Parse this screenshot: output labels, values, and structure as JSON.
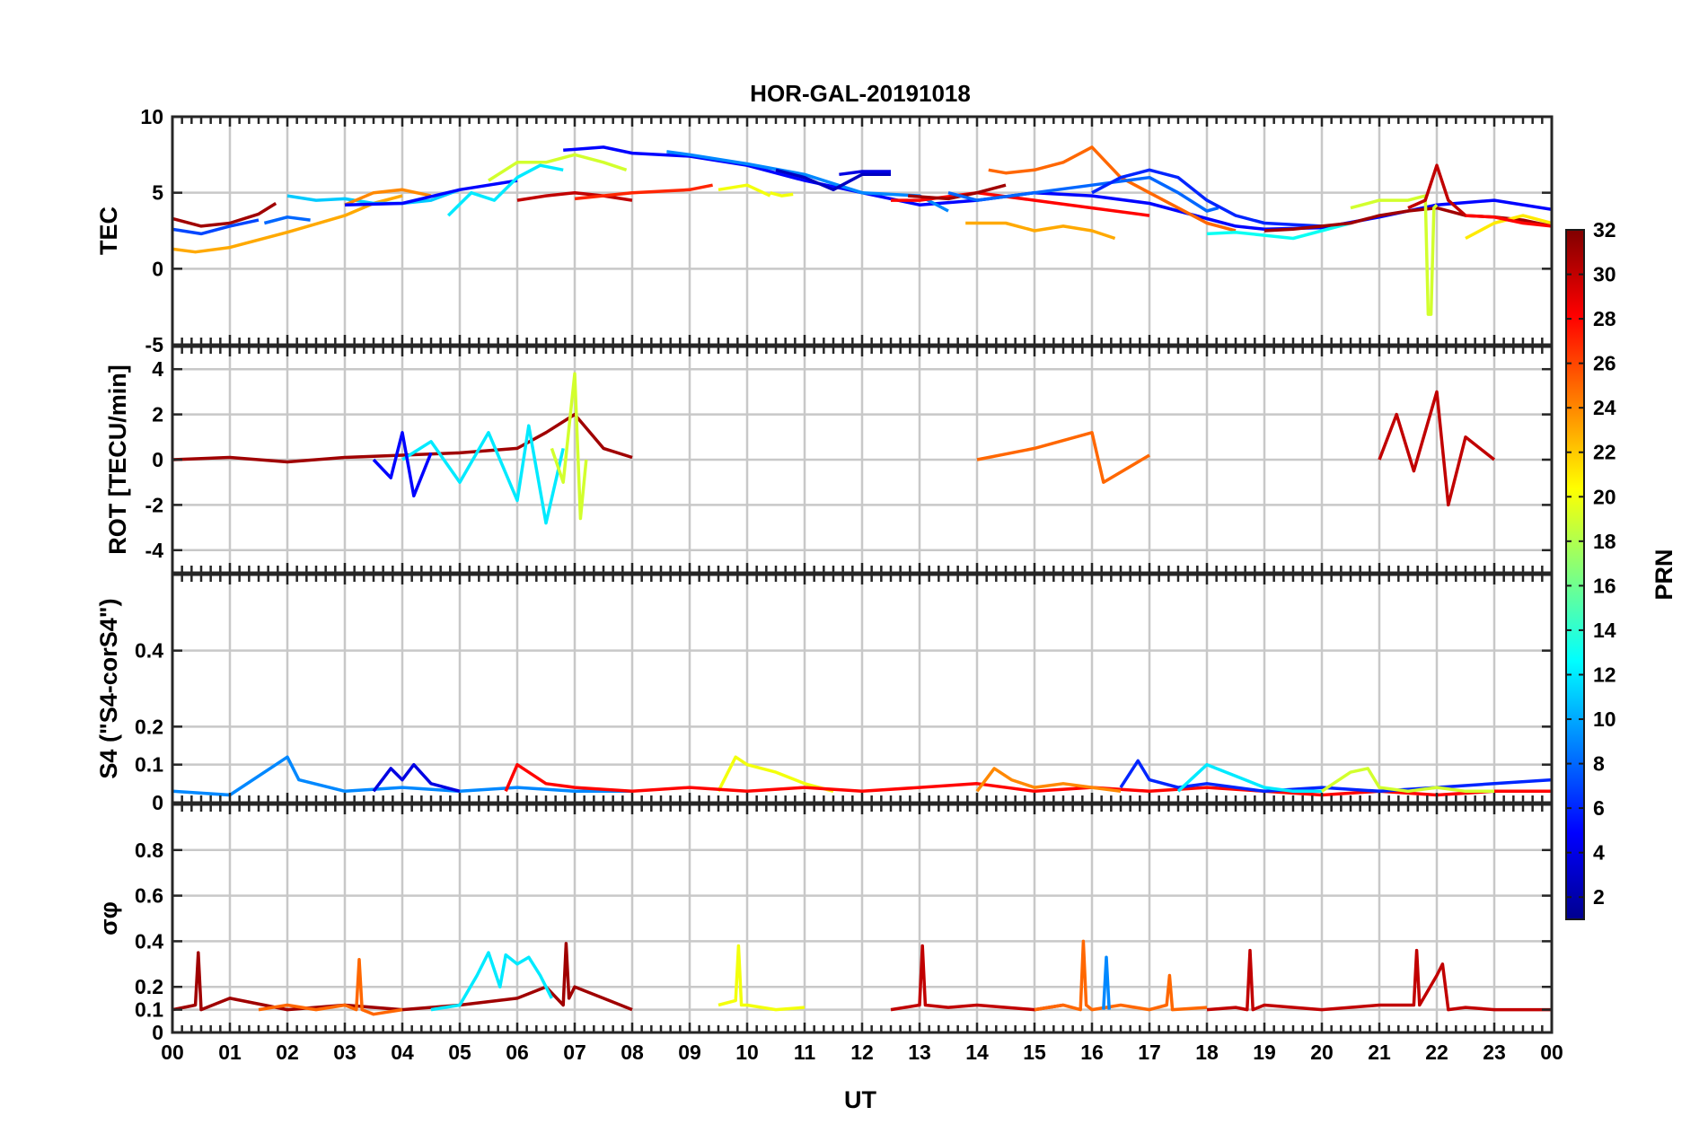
{
  "figure": {
    "title": "HOR-GAL-20191018",
    "xlabel": "UT",
    "colorbar_label": "PRN",
    "colorbar_ticks": [
      "2",
      "4",
      "6",
      "8",
      "10",
      "12",
      "14",
      "16",
      "18",
      "20",
      "22",
      "24",
      "26",
      "28",
      "30",
      "32"
    ]
  },
  "chart_data": [
    {
      "type": "line",
      "panel": "tec",
      "ylabel": "TEC",
      "xlim": [
        0,
        24
      ],
      "ylim": [
        -5,
        10
      ],
      "yticks": [
        "-5",
        "0",
        "5",
        "10"
      ],
      "xticks": [],
      "series": [
        {
          "prn": 31,
          "x": [
            0,
            0.5,
            1,
            1.5,
            1.8
          ],
          "y": [
            3.3,
            2.8,
            3,
            3.6,
            4.3
          ]
        },
        {
          "prn": 7,
          "x": [
            0,
            0.5,
            1,
            1.5
          ],
          "y": [
            2.6,
            2.3,
            2.8,
            3.2
          ]
        },
        {
          "prn": 23,
          "x": [
            0,
            0.4,
            1,
            2,
            3,
            3.5,
            4
          ],
          "y": [
            1.3,
            1.1,
            1.4,
            2.4,
            3.5,
            4.3,
            4.8
          ]
        },
        {
          "prn": 11,
          "x": [
            2,
            2.5,
            3,
            3.5,
            4,
            4.5,
            5
          ],
          "y": [
            4.8,
            4.5,
            4.6,
            4.3,
            4.3,
            4.5,
            5.2
          ]
        },
        {
          "prn": 8,
          "x": [
            1.6,
            2,
            2.4
          ],
          "y": [
            3,
            3.4,
            3.2
          ]
        },
        {
          "prn": 24,
          "x": [
            3,
            3.5,
            4,
            4.5
          ],
          "y": [
            4.2,
            5,
            5.2,
            4.8
          ]
        },
        {
          "prn": 5,
          "x": [
            3,
            4,
            5,
            5.5,
            6
          ],
          "y": [
            4.2,
            4.3,
            5.2,
            5.5,
            5.8
          ]
        },
        {
          "prn": 12,
          "x": [
            4.8,
            5.2,
            5.6,
            6,
            6.4,
            6.8
          ],
          "y": [
            3.5,
            5,
            4.5,
            6,
            6.8,
            6.5
          ]
        },
        {
          "prn": 19,
          "x": [
            5.5,
            6,
            6.5,
            7,
            7.5,
            7.9
          ],
          "y": [
            5.8,
            7,
            7,
            7.5,
            7,
            6.5
          ]
        },
        {
          "prn": 30,
          "x": [
            6,
            6.5,
            7,
            7.5,
            8
          ],
          "y": [
            4.5,
            4.8,
            5,
            4.8,
            4.5
          ]
        },
        {
          "prn": 27,
          "x": [
            7,
            8,
            9,
            9.4
          ],
          "y": [
            4.6,
            5,
            5.2,
            5.5
          ]
        },
        {
          "prn": 5,
          "x": [
            6.8,
            7.5,
            8,
            9,
            10,
            11,
            12,
            13,
            14,
            15,
            16,
            17,
            18,
            18.5,
            19,
            20,
            21,
            22,
            23,
            24
          ],
          "y": [
            7.8,
            8,
            7.6,
            7.4,
            6.8,
            5.8,
            5,
            4.2,
            4.5,
            5,
            4.8,
            4.3,
            3.3,
            2.8,
            2.6,
            2.7,
            3.4,
            4.2,
            4.5,
            3.9
          ]
        },
        {
          "prn": 9,
          "x": [
            8.6,
            9,
            10,
            11,
            12,
            13,
            13.5
          ],
          "y": [
            7.7,
            7.5,
            6.9,
            6.2,
            5,
            4.8,
            3.8
          ]
        },
        {
          "prn": 20,
          "x": [
            9.5,
            10,
            10.4
          ],
          "y": [
            5.2,
            5.5,
            4.8
          ]
        },
        {
          "prn": 20,
          "x": [
            10.4,
            10.6,
            10.8
          ],
          "y": [
            5,
            4.8,
            4.9
          ]
        },
        {
          "prn": 3,
          "x": [
            10.5,
            11,
            11.5,
            12,
            12.5
          ],
          "y": [
            6.5,
            6,
            5.2,
            6.2,
            6.2
          ]
        },
        {
          "prn": 4,
          "x": [
            11.6,
            12,
            12.5
          ],
          "y": [
            6.2,
            6.4,
            6.4
          ]
        },
        {
          "prn": 28,
          "x": [
            12.5,
            13,
            14,
            15,
            16,
            17
          ],
          "y": [
            4.5,
            4.5,
            5,
            4.5,
            4,
            3.5
          ]
        },
        {
          "prn": 31,
          "x": [
            12.8,
            13.5,
            14,
            14.5
          ],
          "y": [
            4.8,
            4.6,
            5,
            5.5
          ]
        },
        {
          "prn": 23,
          "x": [
            13.8,
            14.5,
            15,
            15.5,
            16,
            16.4
          ],
          "y": [
            3,
            3,
            2.5,
            2.8,
            2.5,
            2
          ]
        },
        {
          "prn": 25,
          "x": [
            14.2,
            14.5,
            15,
            15.5,
            16,
            16.5,
            17,
            17.5,
            18,
            18.5
          ],
          "y": [
            6.5,
            6.3,
            6.5,
            7,
            8,
            6,
            5,
            4,
            3,
            2.5
          ]
        },
        {
          "prn": 8,
          "x": [
            13.5,
            14,
            15,
            16,
            17,
            17.5,
            18,
            18.2
          ],
          "y": [
            5,
            4.5,
            5,
            5.5,
            6,
            5,
            3.8,
            4
          ]
        },
        {
          "prn": 6,
          "x": [
            16,
            16.5,
            17,
            17.5,
            18,
            18.5,
            19,
            19.5,
            20
          ],
          "y": [
            5,
            6,
            6.5,
            6,
            4.5,
            3.5,
            3,
            2.9,
            2.8
          ]
        },
        {
          "prn": 13,
          "x": [
            18,
            18.5,
            19,
            19.5,
            20,
            20.5
          ],
          "y": [
            2.3,
            2.4,
            2.2,
            2,
            2.5,
            3
          ]
        },
        {
          "prn": 31,
          "x": [
            19,
            19.5,
            20,
            20.5,
            21,
            21.5,
            22,
            22.5,
            23,
            23.5,
            24
          ],
          "y": [
            2.5,
            2.6,
            2.8,
            3,
            3.5,
            3.8,
            4,
            3.5,
            3.4,
            3.2,
            2.8
          ]
        },
        {
          "prn": 19,
          "x": [
            20.5,
            21,
            21.5,
            21.8,
            21.85,
            21.9,
            21.95,
            22
          ],
          "y": [
            4,
            4.5,
            4.5,
            4.8,
            -3,
            -3,
            4,
            4.2
          ]
        },
        {
          "prn": 21,
          "x": [
            22.5,
            23,
            23.5,
            24
          ],
          "y": [
            2,
            3,
            3.5,
            3
          ]
        },
        {
          "prn": 30,
          "x": [
            21.5,
            21.8,
            22,
            22.2,
            22.5
          ],
          "y": [
            4,
            4.5,
            6.8,
            4.5,
            3.5
          ]
        },
        {
          "prn": 28,
          "x": [
            22.5,
            23,
            23.5,
            24
          ],
          "y": [
            3.5,
            3.4,
            3,
            2.8
          ]
        }
      ]
    },
    {
      "type": "line",
      "panel": "rot",
      "ylabel": "ROT [TECU/min]",
      "xlim": [
        0,
        24
      ],
      "ylim": [
        -5,
        5
      ],
      "yticks": [
        "-4",
        "-2",
        "0",
        "2",
        "4"
      ],
      "xticks": [],
      "series": [
        {
          "prn": 31,
          "x": [
            0,
            1,
            2,
            3,
            4,
            5,
            6,
            6.5,
            7,
            7.5,
            8
          ],
          "y": [
            0,
            0.1,
            -0.1,
            0.1,
            0.2,
            0.3,
            0.5,
            1.2,
            2,
            0.5,
            0.1
          ]
        },
        {
          "prn": 12,
          "x": [
            4,
            4.5,
            5,
            5.5,
            6,
            6.2,
            6.5,
            6.8
          ],
          "y": [
            0,
            0.8,
            -1,
            1.2,
            -1.8,
            1.5,
            -2.8,
            0.5
          ]
        },
        {
          "prn": 19,
          "x": [
            6.6,
            6.8,
            7,
            7.1,
            7.2
          ],
          "y": [
            0.5,
            -1,
            3.8,
            -2.6,
            0
          ]
        },
        {
          "prn": 5,
          "x": [
            3.5,
            3.8,
            4,
            4.2,
            4.5
          ],
          "y": [
            0,
            -0.8,
            1.2,
            -1.6,
            0.3
          ]
        },
        {
          "prn": 30,
          "x": [
            21,
            21.3,
            21.6,
            22,
            22.2,
            22.5,
            23
          ],
          "y": [
            0,
            2,
            -0.5,
            3,
            -2,
            1,
            0
          ]
        },
        {
          "prn": 25,
          "x": [
            14,
            15,
            16,
            16.2,
            17
          ],
          "y": [
            0,
            0.5,
            1.2,
            -1,
            0.2
          ]
        }
      ]
    },
    {
      "type": "line",
      "panel": "s4",
      "ylabel": "S4 (\"S4-corS4\")",
      "xlim": [
        0,
        24
      ],
      "ylim": [
        0,
        0.6
      ],
      "yticks": [
        "0",
        "0.1",
        "0.2",
        "0.4"
      ],
      "xticks": [],
      "series": [
        {
          "prn": 9,
          "x": [
            0,
            1,
            1.8,
            2,
            2.2,
            3,
            4,
            5,
            6,
            7,
            8
          ],
          "y": [
            0.03,
            0.02,
            0.1,
            0.12,
            0.06,
            0.03,
            0.04,
            0.03,
            0.04,
            0.03,
            0.03
          ]
        },
        {
          "prn": 4,
          "x": [
            3.5,
            3.8,
            4,
            4.2,
            4.5,
            5
          ],
          "y": [
            0.03,
            0.09,
            0.06,
            0.1,
            0.05,
            0.03
          ]
        },
        {
          "prn": 20,
          "x": [
            9.5,
            9.8,
            10,
            10.5,
            11,
            11.5
          ],
          "y": [
            0.03,
            0.12,
            0.1,
            0.08,
            0.05,
            0.03
          ]
        },
        {
          "prn": 28,
          "x": [
            5.8,
            6,
            6.5,
            7,
            8,
            9,
            10,
            11,
            12,
            13,
            14,
            15,
            16,
            17,
            18,
            19,
            20,
            21,
            22,
            23,
            24
          ],
          "y": [
            0.03,
            0.1,
            0.05,
            0.04,
            0.03,
            0.04,
            0.03,
            0.04,
            0.03,
            0.04,
            0.05,
            0.03,
            0.04,
            0.03,
            0.04,
            0.03,
            0.02,
            0.03,
            0.02,
            0.03,
            0.03
          ]
        },
        {
          "prn": 6,
          "x": [
            16.5,
            16.8,
            17,
            17.5,
            18,
            19,
            20,
            21,
            22,
            23,
            24
          ],
          "y": [
            0.04,
            0.11,
            0.06,
            0.04,
            0.05,
            0.03,
            0.04,
            0.03,
            0.04,
            0.05,
            0.06
          ]
        },
        {
          "prn": 12,
          "x": [
            17.5,
            18,
            18.5,
            19,
            19.5,
            20
          ],
          "y": [
            0.03,
            0.1,
            0.07,
            0.04,
            0.03,
            0.03
          ]
        },
        {
          "prn": 19,
          "x": [
            20,
            20.5,
            20.8,
            21,
            21.5,
            22,
            22.5,
            23
          ],
          "y": [
            0.03,
            0.08,
            0.09,
            0.04,
            0.03,
            0.04,
            0.03,
            0.03
          ]
        },
        {
          "prn": 24,
          "x": [
            14,
            14.3,
            14.6,
            15,
            15.5,
            16,
            16.5
          ],
          "y": [
            0.03,
            0.09,
            0.06,
            0.04,
            0.05,
            0.04,
            0.03
          ]
        }
      ]
    },
    {
      "type": "line",
      "panel": "sigma_phi",
      "ylabel": "σφ",
      "xlim": [
        0,
        24
      ],
      "ylim": [
        0,
        1
      ],
      "yticks": [
        "0",
        "0.1",
        "0.2",
        "0.4",
        "0.6",
        "0.8"
      ],
      "xticks": [
        "00",
        "01",
        "02",
        "03",
        "04",
        "05",
        "06",
        "07",
        "08",
        "09",
        "10",
        "11",
        "12",
        "13",
        "14",
        "15",
        "16",
        "17",
        "18",
        "19",
        "20",
        "21",
        "22",
        "23",
        "00"
      ],
      "series": [
        {
          "prn": 31,
          "x": [
            0,
            0.4,
            0.45,
            0.5,
            1,
            2,
            3,
            4,
            5,
            6,
            6.5,
            6.8,
            6.85,
            6.9,
            7,
            7.5,
            8
          ],
          "y": [
            0.1,
            0.12,
            0.35,
            0.1,
            0.15,
            0.1,
            0.12,
            0.1,
            0.12,
            0.15,
            0.2,
            0.12,
            0.39,
            0.15,
            0.2,
            0.15,
            0.1
          ]
        },
        {
          "prn": 25,
          "x": [
            1.5,
            2,
            2.5,
            3,
            3.2,
            3.25,
            3.3,
            3.5,
            4
          ],
          "y": [
            0.1,
            0.12,
            0.1,
            0.12,
            0.1,
            0.32,
            0.1,
            0.08,
            0.1
          ]
        },
        {
          "prn": 12,
          "x": [
            4.5,
            5,
            5.3,
            5.5,
            5.7,
            5.8,
            6,
            6.2,
            6.4,
            6.6
          ],
          "y": [
            0.1,
            0.12,
            0.25,
            0.35,
            0.2,
            0.34,
            0.3,
            0.33,
            0.25,
            0.15
          ]
        },
        {
          "prn": 20,
          "x": [
            9.5,
            9.8,
            9.85,
            9.9,
            10,
            10.5,
            11
          ],
          "y": [
            0.12,
            0.14,
            0.38,
            0.12,
            0.12,
            0.1,
            0.11
          ]
        },
        {
          "prn": 30,
          "x": [
            12.5,
            13,
            13.05,
            13.1,
            13.5,
            14,
            15,
            15.5
          ],
          "y": [
            0.1,
            0.12,
            0.38,
            0.12,
            0.11,
            0.12,
            0.1,
            0.12
          ]
        },
        {
          "prn": 25,
          "x": [
            15,
            15.5,
            15.8,
            15.85,
            15.9,
            16,
            16.5,
            17,
            17.3,
            17.35,
            17.4,
            18
          ],
          "y": [
            0.1,
            0.12,
            0.1,
            0.4,
            0.12,
            0.1,
            0.12,
            0.1,
            0.12,
            0.25,
            0.1,
            0.11
          ]
        },
        {
          "prn": 9,
          "x": [
            16.2,
            16.25,
            16.3
          ],
          "y": [
            0.1,
            0.33,
            0.1
          ]
        },
        {
          "prn": 30,
          "x": [
            18,
            18.5,
            18.7,
            18.75,
            18.8,
            19,
            20,
            21,
            21.6,
            21.65,
            21.7,
            22,
            22.1,
            22.2,
            22.5,
            23,
            24
          ],
          "y": [
            0.1,
            0.11,
            0.1,
            0.36,
            0.1,
            0.12,
            0.1,
            0.12,
            0.12,
            0.36,
            0.12,
            0.25,
            0.3,
            0.1,
            0.11,
            0.1,
            0.1
          ]
        }
      ]
    }
  ]
}
